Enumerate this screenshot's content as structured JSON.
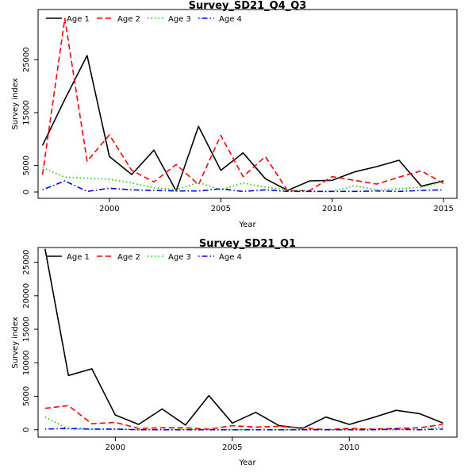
{
  "chart_data": [
    {
      "type": "line",
      "title": "Survey_SD21_Q4_Q3",
      "xlabel": "Year",
      "ylabel": "Survey index",
      "x": [
        1997,
        1998,
        1999,
        2000,
        2001,
        2002,
        2003,
        2004,
        2005,
        2006,
        2007,
        2008,
        2009,
        2010,
        2011,
        2012,
        2013,
        2014,
        2015
      ],
      "xticks": [
        "2000",
        "2005",
        "2010",
        "2015"
      ],
      "yticks": [
        "0",
        "5000",
        "15000",
        "25000"
      ],
      "xlim": [
        1996.8,
        2015.6
      ],
      "ylim": [
        -1200,
        34500
      ],
      "legend": "top-left",
      "series": [
        {
          "name": "Age 1",
          "color": "#000000",
          "dash": "solid",
          "values": [
            8800,
            17500,
            25800,
            6700,
            3300,
            7900,
            200,
            12400,
            4100,
            7400,
            2500,
            300,
            2100,
            2200,
            3800,
            4800,
            6000,
            1100,
            2100
          ]
        },
        {
          "name": "Age 2",
          "color": "#ff0000",
          "dash": "dashed",
          "values": [
            3300,
            32800,
            5800,
            10800,
            4100,
            1900,
            5200,
            1400,
            10700,
            2900,
            6700,
            200,
            300,
            2900,
            2200,
            1500,
            2800,
            4000,
            1600
          ]
        },
        {
          "name": "Age 3",
          "color": "#00cd00",
          "dash": "dotted",
          "values": [
            4600,
            2800,
            2600,
            2400,
            1700,
            800,
            400,
            1800,
            400,
            1700,
            900,
            400,
            100,
            100,
            1200,
            400,
            600,
            900,
            2000
          ]
        },
        {
          "name": "Age 4",
          "color": "#0000ff",
          "dash": "dotdash",
          "values": [
            400,
            2100,
            100,
            700,
            400,
            300,
            200,
            200,
            600,
            100,
            400,
            100,
            100,
            100,
            100,
            200,
            100,
            300,
            400
          ]
        }
      ]
    },
    {
      "type": "line",
      "title": "Survey_SD21_Q1",
      "xlabel": "Year",
      "ylabel": "Survey index",
      "x": [
        1997,
        1998,
        1999,
        2000,
        2001,
        2002,
        2003,
        2004,
        2005,
        2006,
        2007,
        2008,
        2009,
        2010,
        2011,
        2012,
        2013,
        2014
      ],
      "xticks": [
        "2000",
        "2005",
        "2010"
      ],
      "yticks": [
        "0",
        "5000",
        "10000",
        "15000",
        "20000",
        "25000"
      ],
      "xlim": [
        1996.7,
        2014.6
      ],
      "ylim": [
        -1100,
        27200
      ],
      "legend": "top-left",
      "series": [
        {
          "name": "Age 1",
          "color": "#000000",
          "dash": "solid",
          "values": [
            27000,
            8100,
            9100,
            2200,
            800,
            3100,
            700,
            5100,
            1000,
            2600,
            600,
            200,
            1900,
            800,
            1800,
            2900,
            2400,
            1000
          ]
        },
        {
          "name": "Age 2",
          "color": "#ff0000",
          "dash": "dashed",
          "values": [
            3200,
            3600,
            900,
            1100,
            200,
            300,
            300,
            100,
            600,
            400,
            500,
            300,
            0,
            200,
            100,
            200,
            300,
            800
          ]
        },
        {
          "name": "Age 3",
          "color": "#00cd00",
          "dash": "dotted",
          "values": [
            1900,
            100,
            100,
            100,
            0,
            0,
            100,
            0,
            0,
            0,
            0,
            0,
            0,
            0,
            0,
            0,
            0,
            400
          ]
        },
        {
          "name": "Age 4",
          "color": "#0000ff",
          "dash": "dotdash",
          "values": [
            100,
            200,
            100,
            100,
            0,
            0,
            0,
            0,
            0,
            0,
            0,
            0,
            0,
            0,
            0,
            100,
            0,
            100
          ]
        }
      ]
    }
  ]
}
